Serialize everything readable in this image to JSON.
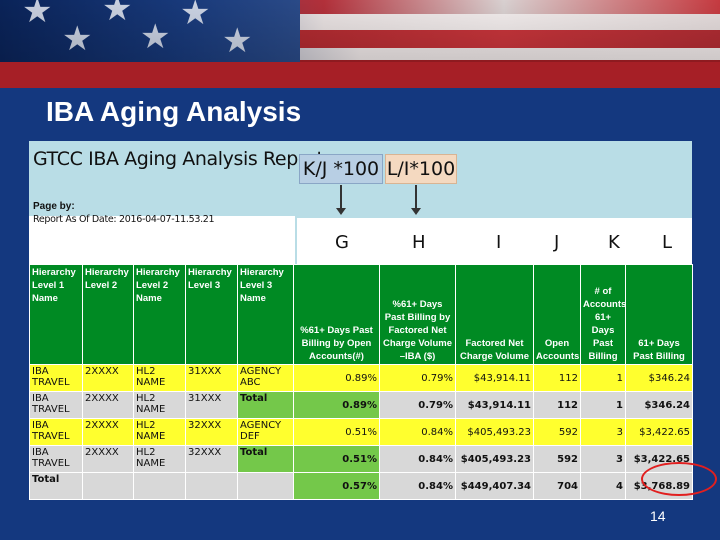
{
  "slide": {
    "title": "IBA Aging Analysis",
    "page_number": "14"
  },
  "report": {
    "title": "GTCC IBA Aging Analysis Report",
    "formula_1": "K/J *100",
    "formula_2": "L/I*100",
    "page_by_label": "Page by:",
    "as_of_date": "Report As Of Date: 2016-04-07-11.53.21",
    "column_letters": [
      "G",
      "H",
      "I",
      "J",
      "K",
      "L"
    ],
    "headers": [
      "Hierarchy Level 1 Name",
      "Hierarchy Level 2",
      "Hierarchy Level 2 Name",
      "Hierarchy Level 3",
      "Hierarchy Level 3 Name",
      "%61+ Days Past Billing by Open Accounts(#)",
      "%61+ Days Past Billing by Factored Net Charge Volume –IBA ($)",
      "Factored Net Charge Volume",
      "Open Accounts",
      "# of Accounts 61+ Days Past Billing",
      "61+ Days Past Billing"
    ],
    "rows": [
      {
        "style": "y",
        "c": [
          "IBA TRAVEL",
          "2XXXX",
          "HL2 NAME",
          "31XXX",
          "AGENCY ABC",
          "0.89%",
          "0.79%",
          "$43,914.11",
          "112",
          "1",
          "$346.24"
        ]
      },
      {
        "style": "g",
        "c": [
          "IBA TRAVEL",
          "2XXXX",
          "HL2 NAME",
          "31XXX",
          "Total",
          "0.89%",
          "0.79%",
          "$43,914.11",
          "112",
          "1",
          "$346.24"
        ]
      },
      {
        "style": "y",
        "c": [
          "IBA TRAVEL",
          "2XXXX",
          "HL2 NAME",
          "32XXX",
          "AGENCY DEF",
          "0.51%",
          "0.84%",
          "$405,493.23",
          "592",
          "3",
          "$3,422.65"
        ]
      },
      {
        "style": "g",
        "c": [
          "IBA TRAVEL",
          "2XXXX",
          "HL2 NAME",
          "32XXX",
          "Total",
          "0.51%",
          "0.84%",
          "$405,493.23",
          "592",
          "3",
          "$3,422.65"
        ]
      },
      {
        "style": "g",
        "c": [
          "Total",
          "",
          "",
          "",
          "",
          "0.57%",
          "0.84%",
          "$449,407.34",
          "704",
          "4",
          "$3,768.89"
        ]
      }
    ]
  }
}
